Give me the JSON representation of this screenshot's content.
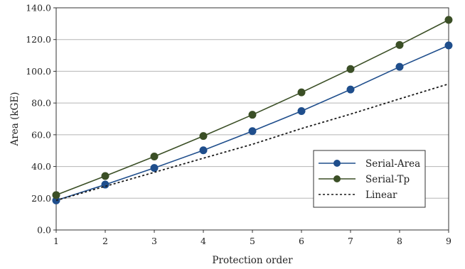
{
  "chart_data": {
    "type": "line",
    "title": "",
    "xlabel": "Protection order",
    "ylabel": "Area (kGE)",
    "x": [
      1,
      2,
      3,
      4,
      5,
      6,
      7,
      8,
      9
    ],
    "xlim": [
      1,
      9
    ],
    "ylim": [
      0,
      140
    ],
    "xticks": [
      "1",
      "2",
      "3",
      "4",
      "5",
      "6",
      "7",
      "8",
      "9"
    ],
    "yticks": [
      "0.0",
      "20.0",
      "40.0",
      "60.0",
      "80.0",
      "100.0",
      "120.0",
      "140.0"
    ],
    "grid": "horizontal",
    "legend_position": "lower-right",
    "series": [
      {
        "name": "Serial-Area",
        "color": "#1f4e8c",
        "style": "solid",
        "marker": "circle",
        "values": [
          18.6,
          28.6,
          39.1,
          50.2,
          62.3,
          74.9,
          88.5,
          102.8,
          116.3
        ]
      },
      {
        "name": "Serial-Tp",
        "color": "#3b4f26",
        "style": "solid",
        "marker": "circle",
        "values": [
          22.0,
          34.0,
          46.3,
          59.2,
          72.6,
          86.7,
          101.4,
          116.6,
          132.4
        ]
      },
      {
        "name": "Linear",
        "color": "#1a1a1a",
        "style": "dotted",
        "marker": "none",
        "values": [
          18.6,
          27.5,
          36.3,
          45.2,
          54.0,
          63.9,
          73.0,
          82.6,
          92.0
        ]
      }
    ]
  }
}
